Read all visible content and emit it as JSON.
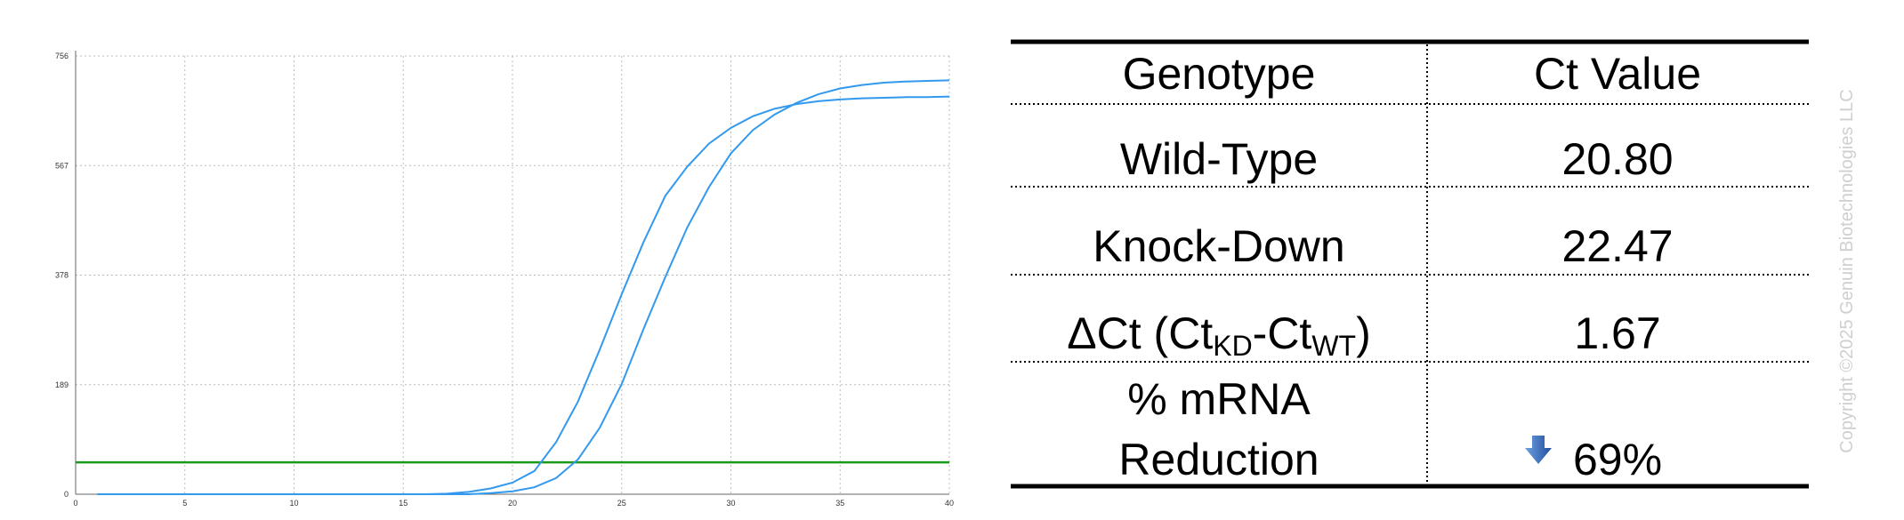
{
  "chart_data": {
    "type": "line",
    "x": [
      1,
      2,
      3,
      4,
      5,
      6,
      7,
      8,
      9,
      10,
      11,
      12,
      13,
      14,
      15,
      16,
      17,
      18,
      19,
      20,
      21,
      22,
      23,
      24,
      25,
      26,
      27,
      28,
      29,
      30,
      31,
      32,
      33,
      34,
      35,
      36,
      37,
      38,
      39,
      40
    ],
    "series": [
      {
        "color": "#3399ee",
        "values": [
          0,
          0,
          0,
          0,
          0,
          0,
          0,
          0,
          0,
          0,
          0,
          0,
          0,
          0,
          0,
          0,
          1,
          4,
          10,
          20,
          40,
          90,
          160,
          250,
          345,
          435,
          515,
          565,
          605,
          632,
          652,
          665,
          673,
          678,
          681,
          683,
          684,
          685,
          685,
          686
        ]
      },
      {
        "color": "#3399ee",
        "values": [
          0,
          0,
          0,
          0,
          0,
          0,
          0,
          0,
          0,
          0,
          0,
          0,
          0,
          0,
          0,
          0,
          0,
          0,
          2,
          5,
          12,
          28,
          60,
          115,
          190,
          285,
          375,
          460,
          530,
          588,
          628,
          655,
          675,
          690,
          700,
          706,
          710,
          712,
          713,
          714
        ]
      }
    ],
    "threshold": 55,
    "threshold_color": "#1a9a1a",
    "xlim": [
      0,
      40
    ],
    "xticks": [
      0,
      5,
      10,
      15,
      20,
      25,
      30,
      35,
      40
    ],
    "ylim": [
      0,
      756
    ],
    "yticks": [
      0,
      189,
      378,
      567,
      756
    ],
    "grid": true
  },
  "table": {
    "header": [
      "Genotype",
      "Ct Value"
    ],
    "rows": [
      {
        "label": "Wild-Type",
        "value": "20.80"
      },
      {
        "label": "Knock-Down",
        "value": "22.47"
      },
      {
        "label_parts": [
          "ΔCt (Ct",
          "KD",
          "-Ct",
          "WT",
          ")"
        ],
        "value": "1.67"
      },
      {
        "label_lines": [
          "% mRNA",
          "Reduction"
        ],
        "value": "69%"
      }
    ]
  },
  "copyright": "Copyright ©2025 Genuin Biotechnologies LLC"
}
